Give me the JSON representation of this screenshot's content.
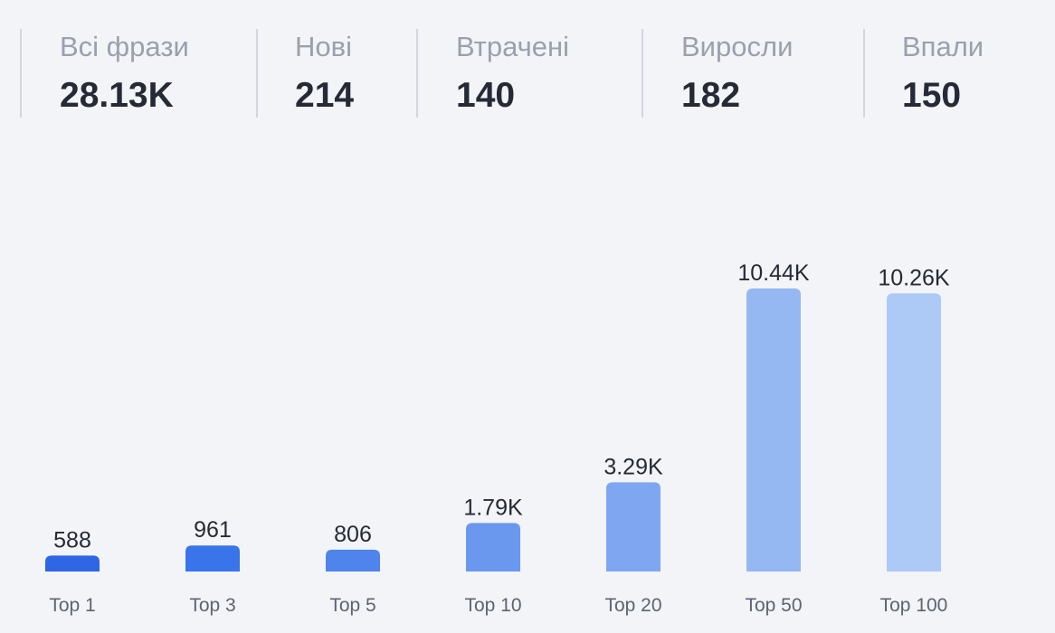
{
  "stats": [
    {
      "label": "Всі фрази",
      "value": "28.13K"
    },
    {
      "label": "Нові",
      "value": "214"
    },
    {
      "label": "Втрачені",
      "value": "140"
    },
    {
      "label": "Виросли",
      "value": "182"
    },
    {
      "label": "Впали",
      "value": "150"
    }
  ],
  "chart_data": {
    "type": "bar",
    "categories": [
      "Top 1",
      "Top 3",
      "Top 5",
      "Top 10",
      "Top 20",
      "Top 50",
      "Top 100"
    ],
    "values": [
      588,
      961,
      806,
      1790,
      3290,
      10440,
      10260
    ],
    "data_labels": [
      "588",
      "961",
      "806",
      "1.79K",
      "3.29K",
      "10.44K",
      "10.26K"
    ],
    "colors": [
      "#2e66e6",
      "#3a74ea",
      "#4e84ec",
      "#6b98ef",
      "#7fa7f1",
      "#95b8f2",
      "#adc9f5"
    ],
    "ylim": [
      0,
      10440
    ],
    "grid": false,
    "legend": "none"
  }
}
